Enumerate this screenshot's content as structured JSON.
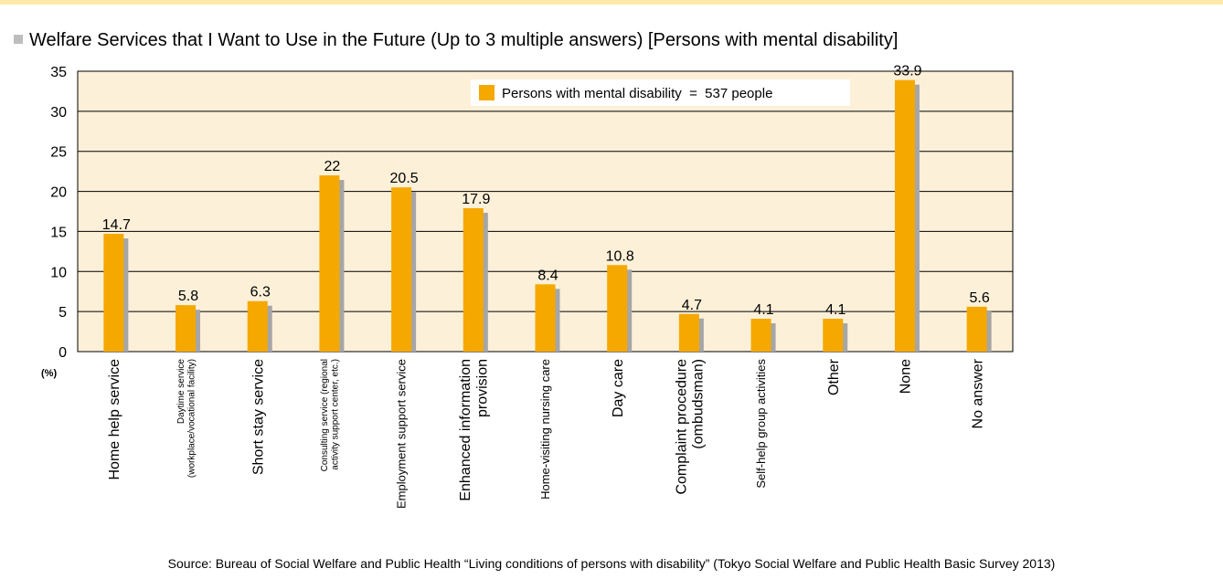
{
  "chart_data": {
    "type": "bar",
    "title": "Welfare Services that I Want to Use in the Future (Up to 3 multiple answers) [Persons with mental disability]",
    "y_label": "(%)",
    "source": "Source: Bureau of Social Welfare and Public Health “Living conditions of persons with disability” (Tokyo Social Welfare and Public Health Basic Survey 2013)",
    "categories": [
      "Home help service",
      "Daytime service\n(workplace/vocational facility)",
      "Short stay service",
      "Consulting service (regional\nactivity support center, etc.)",
      "Employment support service",
      "Enhanced information\nprovision",
      "Home-visiting nursing care",
      "Day care",
      "Complaint procedure\n(ombudsman)",
      "Self-help group activities",
      "Other",
      "None",
      "No answer"
    ],
    "series": [
      {
        "name": "Persons with mental disability  =  537 people",
        "color": "#f5a800",
        "values": [
          14.7,
          5.8,
          6.3,
          22,
          20.5,
          17.9,
          8.4,
          10.8,
          4.7,
          4.1,
          4.1,
          33.9,
          5.6
        ]
      }
    ],
    "ylim": [
      0,
      35
    ],
    "yticks": [
      0,
      5,
      10,
      15,
      20,
      25,
      30,
      35
    ],
    "grid": true
  }
}
